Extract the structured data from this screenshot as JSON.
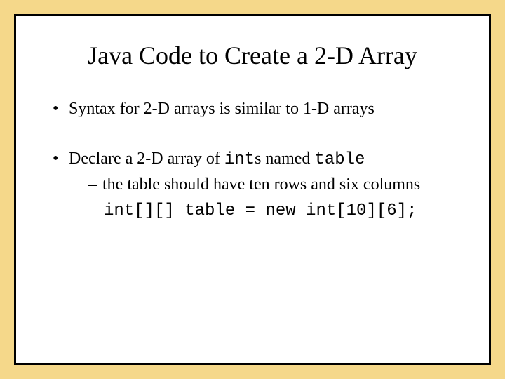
{
  "slide": {
    "background_color": "#f5d88a",
    "content_background": "#ffffff",
    "border_color": "#000000",
    "title": {
      "text": "Java Code to Create a 2-D Array",
      "fontsize": 36,
      "color": "#000000",
      "font_family": "Times New Roman"
    },
    "bullets": [
      {
        "text": "Syntax for 2-D arrays is similar to 1-D arrays",
        "fontsize": 24
      },
      {
        "prefix": "Declare a 2-D array of ",
        "code1": "int",
        "mid": "s named ",
        "code2": "table",
        "fontsize": 24,
        "sub_items": [
          {
            "type": "dash",
            "text": "the table should have ten rows and six columns"
          },
          {
            "type": "code",
            "text": "int[][] table = new int[10][6];"
          }
        ]
      }
    ]
  }
}
